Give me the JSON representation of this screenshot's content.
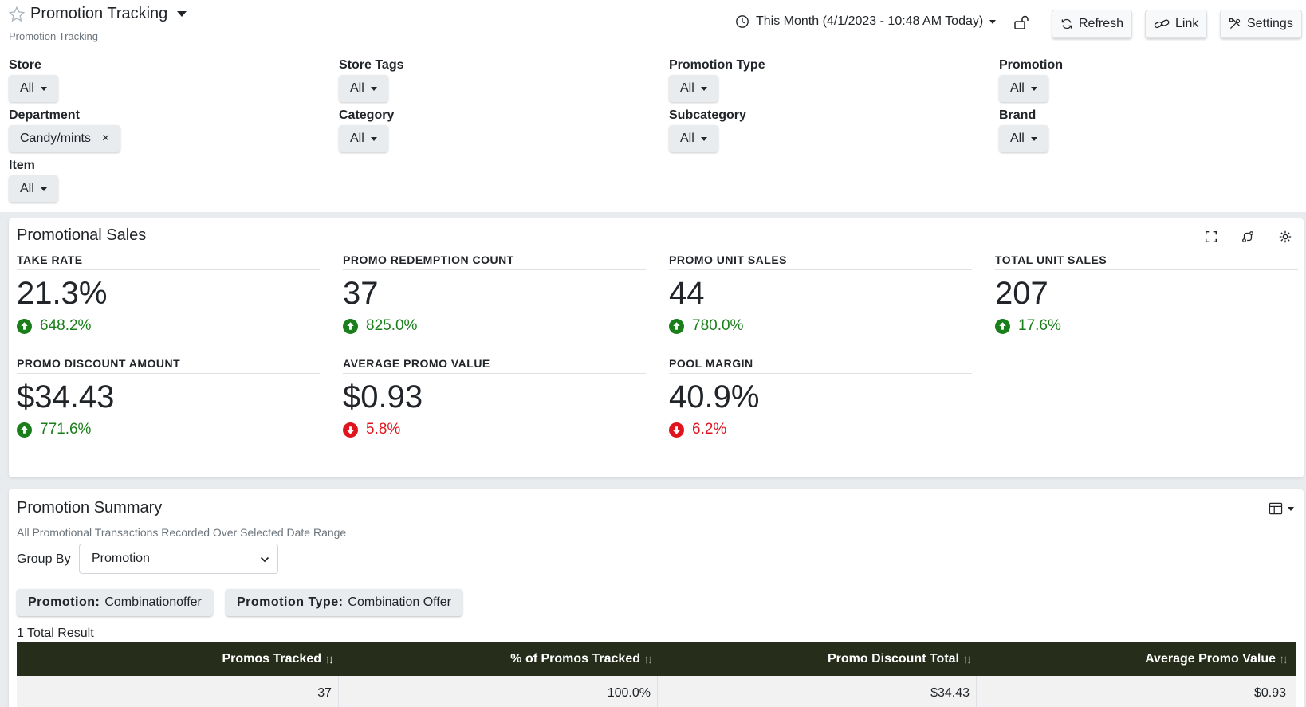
{
  "header": {
    "title": "Promotion Tracking",
    "subtitle": "Promotion Tracking",
    "date_range": "This Month (4/1/2023 - 10:48 AM Today)",
    "buttons": {
      "refresh": "Refresh",
      "link": "Link",
      "settings": "Settings"
    }
  },
  "filters": {
    "store": {
      "label": "Store",
      "value": "All"
    },
    "store_tags": {
      "label": "Store Tags",
      "value": "All"
    },
    "promotion_type": {
      "label": "Promotion Type",
      "value": "All"
    },
    "promotion": {
      "label": "Promotion",
      "value": "All"
    },
    "department": {
      "label": "Department",
      "value": "Candy/mints",
      "remove": "×"
    },
    "category": {
      "label": "Category",
      "value": "All"
    },
    "subcategory": {
      "label": "Subcategory",
      "value": "All"
    },
    "brand": {
      "label": "Brand",
      "value": "All"
    },
    "item": {
      "label": "Item",
      "value": "All"
    }
  },
  "promotional_sales": {
    "title": "Promotional Sales",
    "metrics": [
      {
        "label": "TAKE RATE",
        "value": "21.3%",
        "change": "648.2%",
        "direction": "up"
      },
      {
        "label": "PROMO REDEMPTION COUNT",
        "value": "37",
        "change": "825.0%",
        "direction": "up"
      },
      {
        "label": "PROMO UNIT SALES",
        "value": "44",
        "change": "780.0%",
        "direction": "up"
      },
      {
        "label": "TOTAL UNIT SALES",
        "value": "207",
        "change": "17.6%",
        "direction": "up"
      },
      {
        "label": "PROMO DISCOUNT AMOUNT",
        "value": "$34.43",
        "change": "771.6%",
        "direction": "up"
      },
      {
        "label": "AVERAGE PROMO VALUE",
        "value": "$0.93",
        "change": "5.8%",
        "direction": "down"
      },
      {
        "label": "POOL MARGIN",
        "value": "40.9%",
        "change": "6.2%",
        "direction": "down"
      }
    ]
  },
  "promotion_summary": {
    "title": "Promotion Summary",
    "description": "All Promotional Transactions Recorded Over Selected Date Range",
    "group_by_label": "Group By",
    "group_by_value": "Promotion",
    "chips": [
      {
        "key": "Promotion:",
        "value": "Combinationoffer"
      },
      {
        "key": "Promotion Type:",
        "value": "Combination Offer"
      }
    ],
    "results_text": "1 Total Result",
    "columns": [
      "Promos Tracked",
      "% of Promos Tracked",
      "Promo Discount Total",
      "Average Promo Value"
    ],
    "rows": [
      [
        "37",
        "100.0%",
        "$34.43",
        "$0.93"
      ]
    ]
  },
  "colors": {
    "up": "#1a7f1a",
    "down": "#e0141e",
    "table_header": "#262d1a"
  }
}
